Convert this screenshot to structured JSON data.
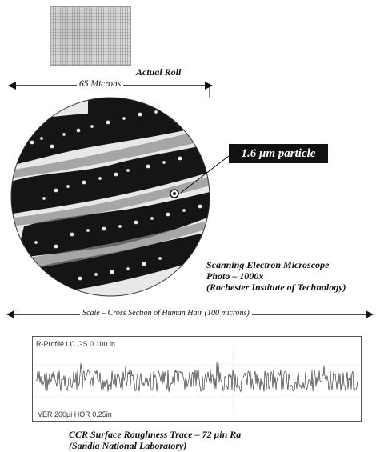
{
  "roll": {
    "caption": "Actual Roll"
  },
  "measure": {
    "label": "65 Microns"
  },
  "particle": {
    "label": "1.6 μm particle"
  },
  "sem": {
    "line1": "Scanning Electron Microscope",
    "line2": "Photo – 1000x",
    "line3": "(Rochester Institute of Technology)"
  },
  "scale": {
    "label": "Scale – Cross Section of Human Hair (100 microns)"
  },
  "trace": {
    "header": "R-Profile   LC GS 0.100 in",
    "footer": "VER 200μi   HOR 0.25in",
    "caption_line1": "CCR Surface Roughness Trace – 72 μin  Ra",
    "caption_line2": "(Sandia National Laboratory)"
  }
}
